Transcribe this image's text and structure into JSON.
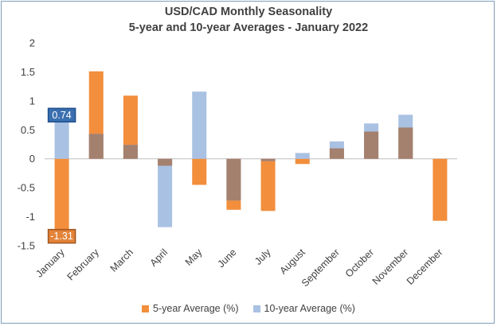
{
  "chart_data": {
    "type": "bar",
    "title": "USD/CAD Monthly Seasonality",
    "subtitle": "5-year and 10-year Averages - January 2022",
    "categories": [
      "January",
      "February",
      "March",
      "April",
      "May",
      "June",
      "July",
      "August",
      "September",
      "October",
      "November",
      "December"
    ],
    "series": [
      {
        "name": "5-year Average (%)",
        "color": "#f28e3c",
        "values": [
          -1.31,
          1.51,
          1.09,
          -0.12,
          -0.45,
          -0.88,
          -0.9,
          -0.09,
          0.18,
          0.47,
          0.54,
          -1.07
        ]
      },
      {
        "name": "10-year Average (%)",
        "color": "#a9c1e2",
        "values": [
          0.74,
          0.43,
          0.24,
          -1.18,
          1.16,
          -0.72,
          -0.04,
          0.1,
          0.3,
          0.61,
          0.76,
          0.0
        ]
      }
    ],
    "overlap_color": "#a4806f",
    "ylim": [
      -1.5,
      2
    ],
    "yticks": [
      "2",
      "1.5",
      "1",
      "0.5",
      "0",
      "-0.5",
      "-1",
      "-1.5"
    ],
    "annotations": [
      {
        "label": "0.74",
        "category": "January",
        "series": "10-year Average (%)",
        "bg": "#3a6fb0",
        "border": "#1f4e8c"
      },
      {
        "label": "-1.31",
        "category": "January",
        "series": "5-year Average (%)",
        "bg": "#e3843a",
        "border": "#a0541e"
      }
    ]
  }
}
